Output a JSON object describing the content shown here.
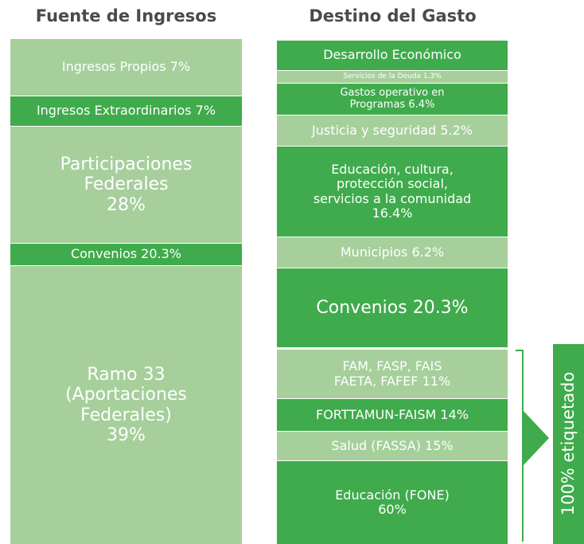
{
  "left": {
    "title": "Fuente de Ingresos",
    "blocks": [
      {
        "lines": [
          "Ingresos Propios 7%"
        ],
        "color": "#a6cf9c"
      },
      {
        "lines": [
          "Ingresos Extraordinarios 7%"
        ],
        "color": "#3fab4c"
      },
      {
        "lines": [
          "Participaciones",
          "Federales",
          "28%"
        ],
        "color": "#a6cf9c"
      },
      {
        "lines": [
          "Convenios 20.3%"
        ],
        "color": "#3fab4c"
      },
      {
        "lines": [
          "Ramo 33",
          "(Aportaciones",
          "Federales)",
          "39%"
        ],
        "color": "#a6cf9c"
      }
    ]
  },
  "right": {
    "title": "Destino del Gasto",
    "blocks": [
      {
        "lines": [
          "Desarrollo Económico"
        ],
        "color": "#3fab4c"
      },
      {
        "lines": [
          "Servicios de la Deuda 1.3%"
        ],
        "color": "#a6cf9c"
      },
      {
        "lines": [
          "Gastos operativo en",
          "Programas 6.4%"
        ],
        "color": "#3fab4c"
      },
      {
        "lines": [
          "Justicia y seguridad 5.2%"
        ],
        "color": "#a6cf9c"
      },
      {
        "lines": [
          "Educación, cultura,",
          "protección social,",
          "servicios a la comunidad",
          "16.4%"
        ],
        "color": "#3fab4c"
      },
      {
        "lines": [
          "Municipios 6.2%"
        ],
        "color": "#a6cf9c"
      },
      {
        "lines": [
          "Convenios 20.3%"
        ],
        "color": "#3fab4c"
      },
      {
        "lines": [
          "FAM, FASP, FAIS",
          "FAETA, FAFEF 11%"
        ],
        "color": "#a6cf9c"
      },
      {
        "lines": [
          "FORTTAMUN-FAISM 14%"
        ],
        "color": "#3fab4c"
      },
      {
        "lines": [
          "Salud (FASSA) 15%"
        ],
        "color": "#a6cf9c"
      },
      {
        "lines": [
          "Educación (FONE)",
          "60%"
        ],
        "color": "#3fab4c"
      }
    ]
  },
  "label": "100% etiquetado"
}
